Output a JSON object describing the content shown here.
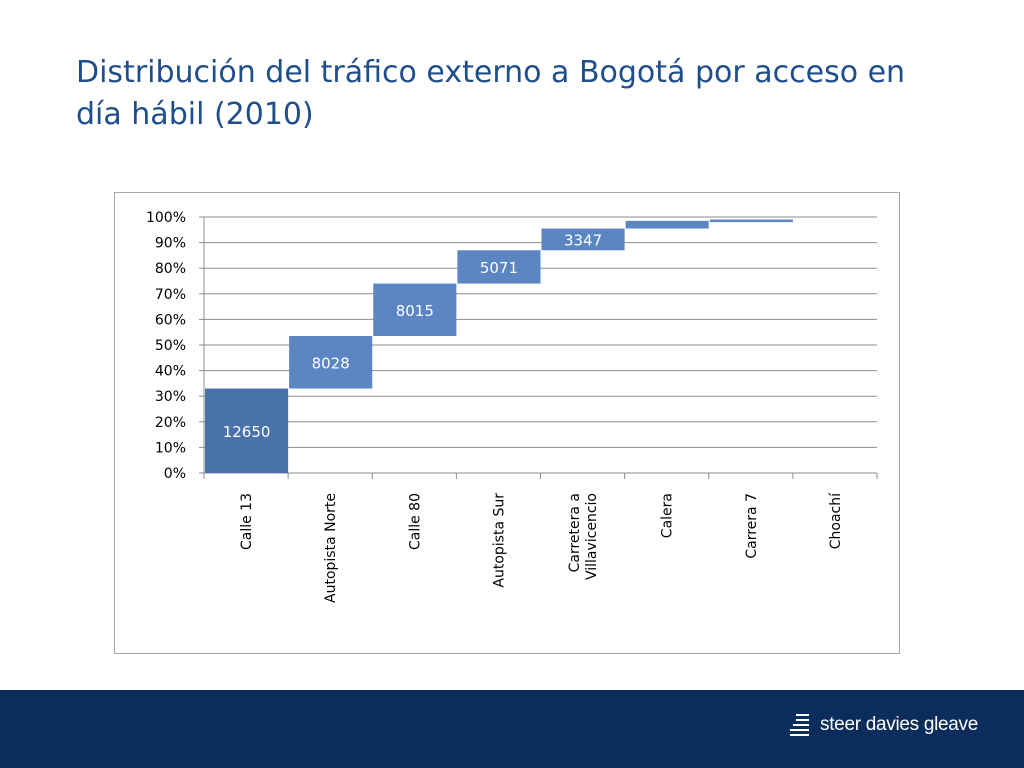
{
  "slide": {
    "title_line1": "Distribución del tráfico externo a Bogotá por acceso en",
    "title_line2": "día hábil (2010)"
  },
  "chart_data": {
    "type": "bar",
    "subtype": "waterfall",
    "categories": [
      "Calle 13",
      "Autopista Norte",
      "Calle 80",
      "Autopista Sur",
      "Carretera a Villavicencio",
      "Calera",
      "Carrera 7",
      "Choachí"
    ],
    "category_label_lines": [
      [
        "Calle 13"
      ],
      [
        "Autopista Norte"
      ],
      [
        "Calle 80"
      ],
      [
        "Autopista Sur"
      ],
      [
        "Carretera a",
        "Villavicencio"
      ],
      [
        "Calera"
      ],
      [
        "Carrera 7"
      ],
      [
        "Choachí"
      ]
    ],
    "values": [
      12650,
      8028,
      8015,
      5071,
      3347,
      0,
      0,
      0
    ],
    "segments_percent": [
      {
        "start": 0,
        "end": 33
      },
      {
        "start": 33,
        "end": 53.5
      },
      {
        "start": 53.5,
        "end": 74
      },
      {
        "start": 74,
        "end": 87
      },
      {
        "start": 87,
        "end": 95.5
      },
      {
        "start": 95.5,
        "end": 98.5
      },
      {
        "start": 98,
        "end": 99
      },
      {
        "start": 100,
        "end": 100
      }
    ],
    "data_labels": [
      "12650",
      "8028",
      "8015",
      "5071",
      "3347",
      "",
      "",
      ""
    ],
    "y_ticks": [
      "0%",
      "10%",
      "20%",
      "30%",
      "40%",
      "50%",
      "60%",
      "70%",
      "80%",
      "90%",
      "100%"
    ],
    "ylim": [
      0,
      100
    ],
    "grid": true,
    "legend": "none",
    "bar_colors": [
      "#4a72aa",
      "#5b86c2",
      "#5b86c2",
      "#5b86c2",
      "#5b86c2",
      "#5b86c2",
      "#5b86c2",
      "#5b86c2"
    ]
  },
  "footer": {
    "logo_text": "steer davies gleave",
    "logo_icon": "stacked-bars-logo-icon",
    "band_color": "#0b2d5c"
  }
}
